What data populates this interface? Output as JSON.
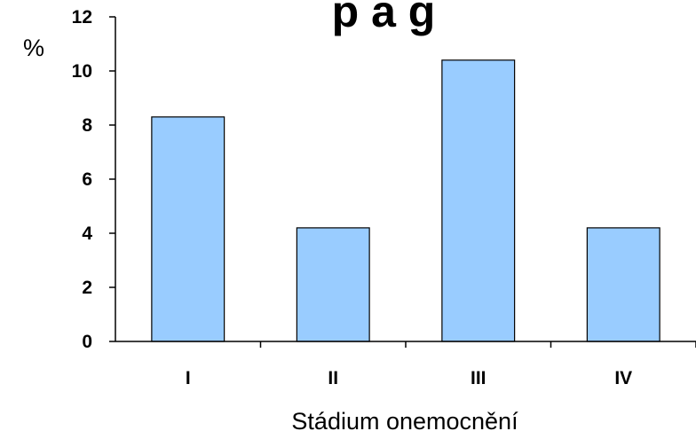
{
  "chart_data": {
    "type": "bar",
    "title": "p a g",
    "xlabel": "Stádium onemocnění",
    "ylabel": "%",
    "categories": [
      "I",
      "II",
      "III",
      "IV"
    ],
    "values": [
      8.3,
      4.2,
      10.4,
      4.2
    ],
    "ylim": [
      0,
      12
    ],
    "yticks": [
      "0",
      "2",
      "4",
      "6",
      "8",
      "10",
      "12"
    ],
    "grid": false,
    "legend": "none",
    "colors": {
      "bar_fill": "#99ccff",
      "bar_stroke": "#000000",
      "axis": "#000000"
    }
  }
}
